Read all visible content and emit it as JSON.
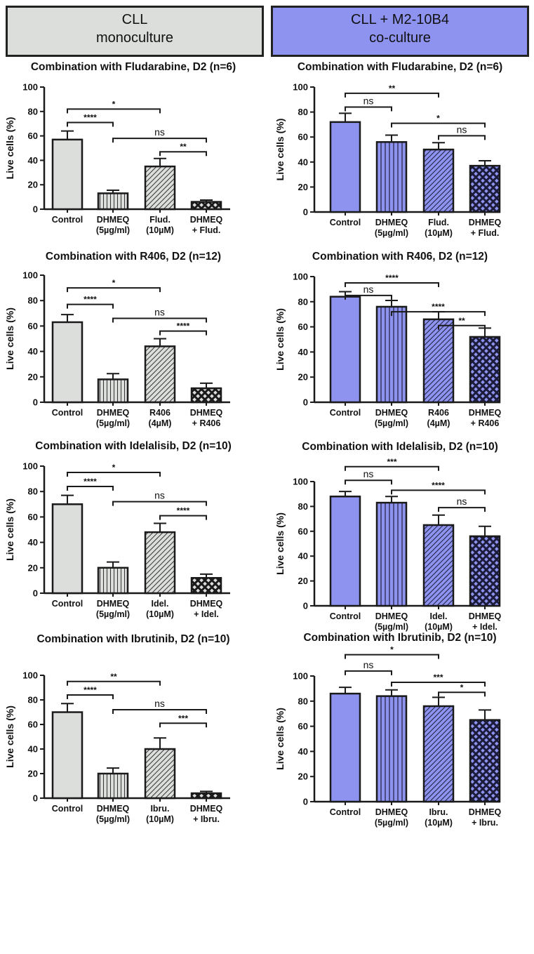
{
  "headers": [
    {
      "line1": "CLL",
      "line2": "monoculture",
      "color": "#dcdedc"
    },
    {
      "line1": "CLL + M2-10B4",
      "line2": "co-culture",
      "color": "#8e93f0"
    }
  ],
  "chart_data": [
    {
      "type": "bar",
      "title": "Combination with Fludarabine, D2 (n=6)",
      "ylabel": "Live cells (%)",
      "ylim": [
        0,
        100
      ],
      "yticks": [
        "0",
        "20",
        "40",
        "60",
        "80",
        "100"
      ],
      "categories": [
        [
          "Control",
          ""
        ],
        [
          "DHMEQ",
          "(5µg/ml)"
        ],
        [
          "Flud.",
          "(10µM)"
        ],
        [
          "DHMEQ",
          "+ Flud."
        ]
      ],
      "values": [
        57,
        13,
        35,
        6
      ],
      "errors": [
        7,
        2.5,
        6.5,
        1.5
      ],
      "fill": "#dcdedc",
      "brackets": [
        {
          "from": 0,
          "to": 2,
          "y": 82,
          "label": "*"
        },
        {
          "from": 0,
          "to": 1,
          "y": 71,
          "label": "****"
        },
        {
          "from": 1,
          "to": 3,
          "y": 58,
          "label": "ns"
        },
        {
          "from": 2,
          "to": 3,
          "y": 47,
          "label": "**"
        }
      ]
    },
    {
      "type": "bar",
      "title": "Combination with Fludarabine, D2 (n=6)",
      "ylabel": "Live cells (%)",
      "ylim": [
        0,
        100
      ],
      "yticks": [
        "0",
        "20",
        "40",
        "60",
        "80",
        "100"
      ],
      "categories": [
        [
          "Control",
          ""
        ],
        [
          "DHMEQ",
          "(5µg/ml)"
        ],
        [
          "Flud.",
          "(10µM)"
        ],
        [
          "DHMEQ",
          "+ Flud."
        ]
      ],
      "values": [
        72,
        56,
        50,
        37
      ],
      "errors": [
        7,
        5.5,
        5.5,
        4
      ],
      "fill": "#8e93f0",
      "brackets": [
        {
          "from": 0,
          "to": 2,
          "y": 95,
          "label": "**"
        },
        {
          "from": 0,
          "to": 1,
          "y": 84,
          "label": "ns"
        },
        {
          "from": 1,
          "to": 3,
          "y": 71,
          "label": "*"
        },
        {
          "from": 2,
          "to": 3,
          "y": 61,
          "label": "ns"
        }
      ]
    },
    {
      "type": "bar",
      "title": "Combination with R406, D2 (n=12)",
      "ylabel": "Live cells (%)",
      "ylim": [
        0,
        100
      ],
      "yticks": [
        "0",
        "20",
        "40",
        "60",
        "80",
        "100"
      ],
      "categories": [
        [
          "Control",
          ""
        ],
        [
          "DHMEQ",
          "(5µg/ml)"
        ],
        [
          "R406",
          "(4µM)"
        ],
        [
          "DHMEQ",
          "+ R406"
        ]
      ],
      "values": [
        63,
        18,
        44,
        11
      ],
      "errors": [
        6,
        4.5,
        6,
        4
      ],
      "fill": "#dcdedc",
      "brackets": [
        {
          "from": 0,
          "to": 2,
          "y": 90,
          "label": "*"
        },
        {
          "from": 0,
          "to": 1,
          "y": 77,
          "label": "****"
        },
        {
          "from": 1,
          "to": 3,
          "y": 66,
          "label": "ns"
        },
        {
          "from": 2,
          "to": 3,
          "y": 56,
          "label": "****"
        }
      ]
    },
    {
      "type": "bar",
      "title": "Combination with R406, D2 (n=12)",
      "ylabel": "Live cells (%)",
      "ylim": [
        0,
        100
      ],
      "yticks": [
        "0",
        "20",
        "40",
        "60",
        "80",
        "100"
      ],
      "categories": [
        [
          "Control",
          ""
        ],
        [
          "DHMEQ",
          "(5µg/ml)"
        ],
        [
          "R406",
          "(4µM)"
        ],
        [
          "DHMEQ",
          "+ R406"
        ]
      ],
      "values": [
        84,
        76,
        66,
        52
      ],
      "errors": [
        4,
        5,
        6,
        7
      ],
      "fill": "#8e93f0",
      "brackets": [
        {
          "from": 0,
          "to": 2,
          "y": 95,
          "label": "****"
        },
        {
          "from": 0,
          "to": 1,
          "y": 85,
          "label": "ns"
        },
        {
          "from": 1,
          "to": 3,
          "y": 72,
          "label": "****"
        },
        {
          "from": 2,
          "to": 3,
          "y": 61,
          "label": "**"
        }
      ]
    },
    {
      "type": "bar",
      "title": "Combination with Idelalisib, D2 (n=10)",
      "ylabel": "Live cells (%)",
      "ylim": [
        0,
        100
      ],
      "yticks": [
        "0",
        "20",
        "40",
        "60",
        "80",
        "100"
      ],
      "categories": [
        [
          "Control",
          ""
        ],
        [
          "DHMEQ",
          "(5µg/ml)"
        ],
        [
          "Idel.",
          "(10µM)"
        ],
        [
          "DHMEQ",
          "+ Idel."
        ]
      ],
      "values": [
        70,
        20,
        48,
        12
      ],
      "errors": [
        7,
        4.5,
        7,
        3
      ],
      "fill": "#dcdedc",
      "brackets": [
        {
          "from": 0,
          "to": 2,
          "y": 95,
          "label": "*"
        },
        {
          "from": 0,
          "to": 1,
          "y": 84,
          "label": "****"
        },
        {
          "from": 1,
          "to": 3,
          "y": 72,
          "label": "ns"
        },
        {
          "from": 2,
          "to": 3,
          "y": 61,
          "label": "****"
        }
      ]
    },
    {
      "type": "bar",
      "title": "Combination with Idelalisib, D2 (n=10)",
      "ylabel": "Live cells (%)",
      "ylim": [
        0,
        100
      ],
      "yticks": [
        "0",
        "20",
        "40",
        "60",
        "80",
        "100"
      ],
      "categories": [
        [
          "Control",
          ""
        ],
        [
          "DHMEQ",
          "(5µg/ml)"
        ],
        [
          "Idel.",
          "(10µM)"
        ],
        [
          "DHMEQ",
          "+ Idel."
        ]
      ],
      "values": [
        88,
        83,
        65,
        56
      ],
      "errors": [
        4,
        5,
        8,
        8
      ],
      "fill": "#8e93f0",
      "brackets": [
        {
          "from": 0,
          "to": 2,
          "y": 112,
          "label": "***"
        },
        {
          "from": 0,
          "to": 1,
          "y": 101,
          "label": "ns"
        },
        {
          "from": 1,
          "to": 3,
          "y": 93,
          "label": "****"
        },
        {
          "from": 2,
          "to": 3,
          "y": 79,
          "label": "ns"
        }
      ]
    },
    {
      "type": "bar",
      "title": "Combination with Ibrutinib, D2 (n=10)",
      "ylabel": "Live cells (%)",
      "ylim": [
        0,
        100
      ],
      "yticks": [
        "0",
        "20",
        "40",
        "60",
        "80",
        "100"
      ],
      "categories": [
        [
          "Control",
          ""
        ],
        [
          "DHMEQ",
          "(5µg/ml)"
        ],
        [
          "Ibru.",
          "(10µM)"
        ],
        [
          "DHMEQ",
          "+ Ibru."
        ]
      ],
      "values": [
        70,
        20,
        40,
        4
      ],
      "errors": [
        7,
        4.5,
        9,
        1.5
      ],
      "fill": "#dcdedc",
      "brackets": [
        {
          "from": 0,
          "to": 2,
          "y": 95,
          "label": "**"
        },
        {
          "from": 0,
          "to": 1,
          "y": 84,
          "label": "****"
        },
        {
          "from": 1,
          "to": 3,
          "y": 72,
          "label": "ns"
        },
        {
          "from": 2,
          "to": 3,
          "y": 61,
          "label": "***"
        }
      ]
    },
    {
      "type": "bar",
      "title": "Combination with Ibrutinib, D2 (n=10)",
      "ylabel": "Live cells (%)",
      "ylim": [
        0,
        100
      ],
      "yticks": [
        "0",
        "20",
        "40",
        "60",
        "80",
        "100"
      ],
      "categories": [
        [
          "Control",
          ""
        ],
        [
          "DHMEQ",
          "(5µg/ml)"
        ],
        [
          "Ibru.",
          "(10µM)"
        ],
        [
          "DHMEQ",
          "+ Ibru."
        ]
      ],
      "values": [
        86,
        84,
        76,
        65
      ],
      "errors": [
        5,
        5,
        7,
        8
      ],
      "fill": "#8e93f0",
      "brackets": [
        {
          "from": 0,
          "to": 2,
          "y": 117,
          "label": "*"
        },
        {
          "from": 0,
          "to": 1,
          "y": 104,
          "label": "ns"
        },
        {
          "from": 1,
          "to": 3,
          "y": 95,
          "label": "***"
        },
        {
          "from": 2,
          "to": 3,
          "y": 87,
          "label": "*"
        }
      ]
    }
  ]
}
